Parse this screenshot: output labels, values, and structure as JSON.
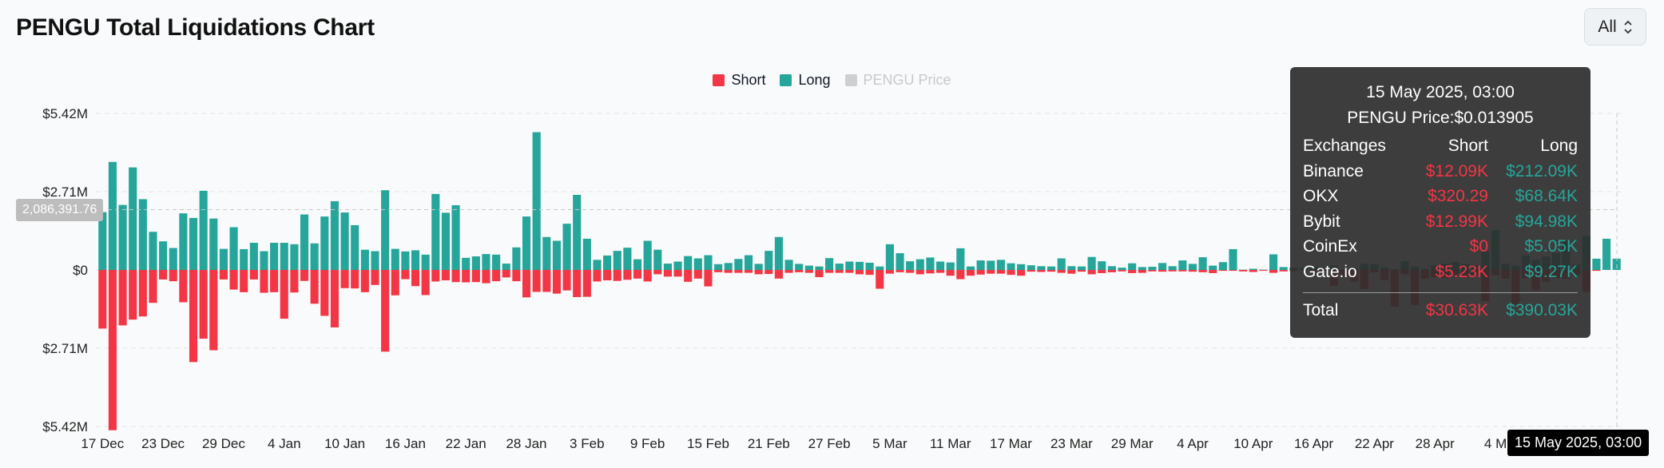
{
  "title": "PENGU Total Liquidations Chart",
  "range_select": {
    "value": "All",
    "icon": "chevron-up-down-icon"
  },
  "legend": [
    {
      "name": "Short",
      "color": "#f23645",
      "active": true
    },
    {
      "name": "Long",
      "color": "#26a69a",
      "active": true
    },
    {
      "name": "PENGU Price",
      "color": "#cfcfcf",
      "active": false
    }
  ],
  "crosshair": {
    "x_label": "15 May 2025, 03:00",
    "y_label": "2,086,391.76",
    "y_value": 2086391.76
  },
  "tooltip": {
    "datetime": "15 May 2025, 03:00",
    "price_line": "PENGU Price:$0.013905",
    "headers": {
      "exchanges": "Exchanges",
      "short": "Short",
      "long": "Long"
    },
    "rows": [
      {
        "exchange": "Binance",
        "short": "$12.09K",
        "long": "$212.09K"
      },
      {
        "exchange": "OKX",
        "short": "$320.29",
        "long": "$68.64K"
      },
      {
        "exchange": "Bybit",
        "short": "$12.99K",
        "long": "$94.98K"
      },
      {
        "exchange": "CoinEx",
        "short": "$0",
        "long": "$5.05K"
      },
      {
        "exchange": "Gate.io",
        "short": "$5.23K",
        "long": "$9.27K"
      }
    ],
    "total": {
      "label": "Total",
      "short": "$30.63K",
      "long": "$390.03K"
    }
  },
  "chart_data": {
    "type": "bar",
    "title": "PENGU Total Liquidations Chart",
    "y_ticks": [
      {
        "value": 5420000,
        "label": "$5.42M"
      },
      {
        "value": 2710000,
        "label": "$2.71M"
      },
      {
        "value": 0,
        "label": "$0"
      },
      {
        "value": -2710000,
        "label": "$2.71M"
      },
      {
        "value": -5420000,
        "label": "$5.42M"
      }
    ],
    "ylim": [
      -5420000,
      5420000
    ],
    "x_ticks": [
      {
        "index": 0,
        "label": "17 Dec"
      },
      {
        "index": 6,
        "label": "23 Dec"
      },
      {
        "index": 12,
        "label": "29 Dec"
      },
      {
        "index": 18,
        "label": "4 Jan"
      },
      {
        "index": 24,
        "label": "10 Jan"
      },
      {
        "index": 30,
        "label": "16 Jan"
      },
      {
        "index": 36,
        "label": "22 Jan"
      },
      {
        "index": 42,
        "label": "28 Jan"
      },
      {
        "index": 48,
        "label": "3 Feb"
      },
      {
        "index": 54,
        "label": "9 Feb"
      },
      {
        "index": 60,
        "label": "15 Feb"
      },
      {
        "index": 66,
        "label": "21 Feb"
      },
      {
        "index": 72,
        "label": "27 Feb"
      },
      {
        "index": 78,
        "label": "5 Mar"
      },
      {
        "index": 84,
        "label": "11 Mar"
      },
      {
        "index": 90,
        "label": "17 Mar"
      },
      {
        "index": 96,
        "label": "23 Mar"
      },
      {
        "index": 102,
        "label": "29 Mar"
      },
      {
        "index": 108,
        "label": "4 Apr"
      },
      {
        "index": 114,
        "label": "10 Apr"
      },
      {
        "index": 120,
        "label": "16 Apr"
      },
      {
        "index": 126,
        "label": "22 Apr"
      },
      {
        "index": 132,
        "label": "28 Apr"
      },
      {
        "index": 138,
        "label": "4 M"
      }
    ],
    "series": [
      {
        "name": "Long",
        "color": "#26a69a",
        "values": [
          2000000,
          3740000,
          2250000,
          3550000,
          2450000,
          1320000,
          990000,
          760000,
          1960000,
          1800000,
          2740000,
          1780000,
          730000,
          1480000,
          720000,
          940000,
          650000,
          940000,
          940000,
          890000,
          1920000,
          920000,
          1850000,
          2380000,
          1990000,
          1550000,
          700000,
          650000,
          2760000,
          730000,
          640000,
          680000,
          530000,
          2630000,
          1980000,
          2240000,
          420000,
          470000,
          550000,
          530000,
          220000,
          780000,
          1850000,
          4770000,
          1140000,
          1010000,
          1600000,
          2600000,
          1080000,
          350000,
          500000,
          660000,
          770000,
          370000,
          1010000,
          700000,
          220000,
          290000,
          480000,
          400000,
          510000,
          200000,
          240000,
          380000,
          510000,
          210000,
          660000,
          1140000,
          350000,
          210000,
          150000,
          120000,
          410000,
          220000,
          290000,
          280000,
          250000,
          120000,
          890000,
          580000,
          300000,
          370000,
          430000,
          290000,
          260000,
          750000,
          120000,
          330000,
          320000,
          350000,
          230000,
          200000,
          160000,
          130000,
          120000,
          400000,
          130000,
          120000,
          450000,
          300000,
          130000,
          80000,
          230000,
          100000,
          110000,
          240000,
          130000,
          330000,
          210000,
          440000,
          150000,
          270000,
          720000,
          10000,
          40000,
          10000,
          540000,
          100000,
          90000,
          60000,
          110000,
          10000,
          160000,
          30000,
          60000,
          220000,
          200000,
          90000,
          20000,
          300000,
          110000,
          40000,
          160000,
          210000,
          270000,
          200000,
          170000,
          640000,
          1380000,
          220000,
          140000,
          500000,
          360000,
          470000,
          580000,
          1000000,
          190000,
          1180000,
          390000,
          1080000,
          390030
        ]
      },
      {
        "name": "Short",
        "color": "#f23645",
        "values": [
          2030000,
          5550000,
          1920000,
          1720000,
          1610000,
          1140000,
          330000,
          390000,
          1120000,
          3190000,
          2380000,
          2780000,
          330000,
          680000,
          770000,
          330000,
          790000,
          770000,
          1690000,
          780000,
          380000,
          1170000,
          1590000,
          1990000,
          630000,
          640000,
          770000,
          520000,
          2830000,
          880000,
          320000,
          560000,
          870000,
          400000,
          360000,
          420000,
          430000,
          420000,
          460000,
          390000,
          260000,
          390000,
          950000,
          760000,
          760000,
          820000,
          710000,
          940000,
          930000,
          400000,
          360000,
          380000,
          340000,
          300000,
          400000,
          150000,
          230000,
          230000,
          410000,
          300000,
          570000,
          80000,
          100000,
          100000,
          100000,
          150000,
          140000,
          300000,
          100000,
          80000,
          100000,
          250000,
          100000,
          100000,
          100000,
          150000,
          170000,
          650000,
          130000,
          80000,
          100000,
          150000,
          120000,
          100000,
          200000,
          320000,
          200000,
          160000,
          130000,
          130000,
          170000,
          200000,
          60000,
          70000,
          60000,
          100000,
          130000,
          60000,
          150000,
          110000,
          80000,
          50000,
          110000,
          100000,
          50000,
          60000,
          50000,
          50000,
          60000,
          80000,
          110000,
          30000,
          30000,
          50000,
          70000,
          30000,
          100000,
          50000,
          40000,
          10000,
          50000,
          30000,
          550000,
          220000,
          400000,
          660000,
          90000,
          360000,
          1270000,
          150000,
          1210000,
          300000,
          250000,
          280000,
          160000,
          210000,
          190000,
          1080000,
          180000,
          300000,
          1200000,
          290000,
          710000,
          400000,
          280000,
          310000,
          180000,
          750000,
          30630
        ]
      }
    ]
  }
}
